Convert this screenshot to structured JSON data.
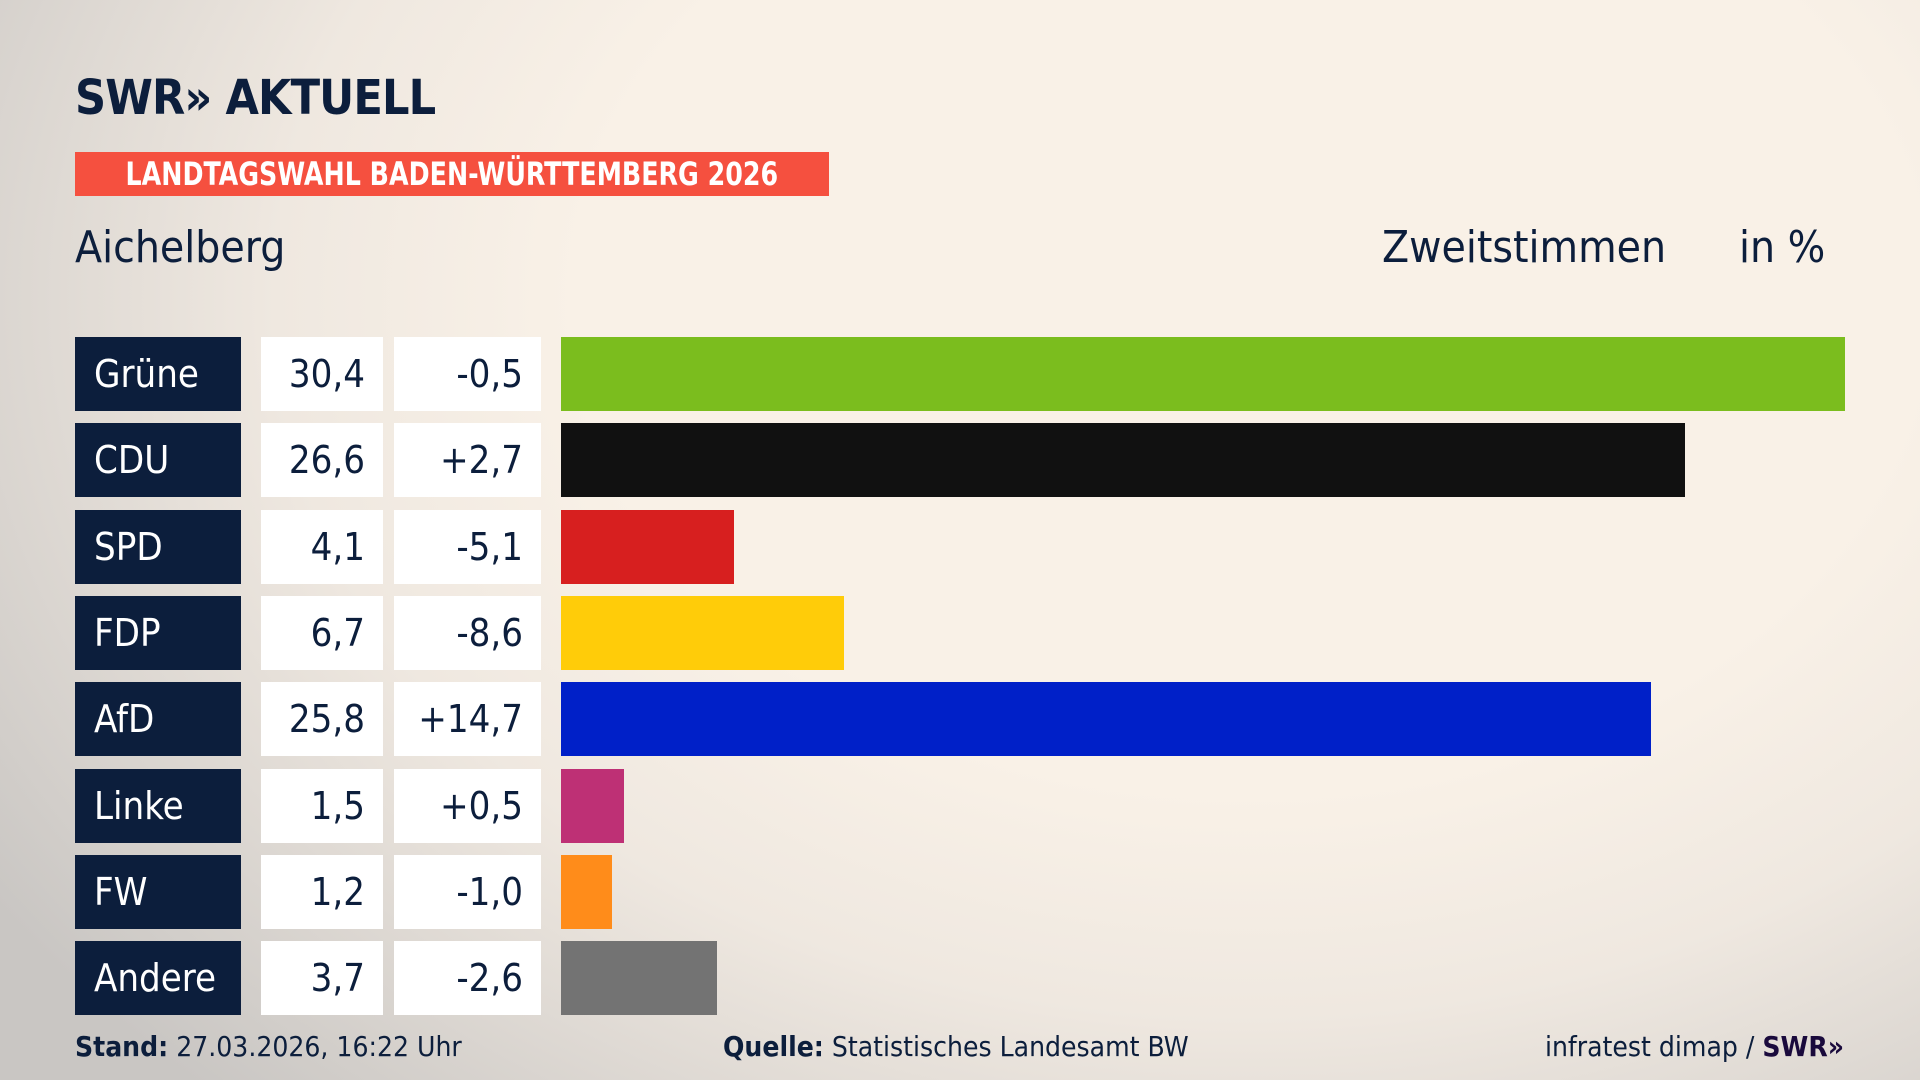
{
  "brand": {
    "logo": "SWR» AKTUELL"
  },
  "banner": "LANDTAGSWAHL BADEN-WÜRTTEMBERG 2026",
  "region": "Aichelberg",
  "measure": "Zweitstimmen",
  "unit": "in %",
  "chart_data": {
    "type": "bar",
    "orientation": "horizontal",
    "categories": [
      "Grüne",
      "CDU",
      "SPD",
      "FDP",
      "AfD",
      "Linke",
      "FW",
      "Andere"
    ],
    "values": [
      30.4,
      26.6,
      4.1,
      6.7,
      25.8,
      1.5,
      1.2,
      3.7
    ],
    "value_labels": [
      "30,4",
      "26,6",
      "4,1",
      "6,7",
      "25,8",
      "1,5",
      "1,2",
      "3,7"
    ],
    "changes": [
      -0.5,
      2.7,
      -5.1,
      -8.6,
      14.7,
      0.5,
      -1.0,
      -2.6
    ],
    "change_labels": [
      "-0,5",
      "+2,7",
      "-5,1",
      "-8,6",
      "+14,7",
      "+0,5",
      "-1,0",
      "-2,6"
    ],
    "colors": [
      "#7bbd1e",
      "#111111",
      "#d71f1f",
      "#ffcc09",
      "#0020c8",
      "#be3075",
      "#ff8c1a",
      "#737373"
    ],
    "xlim": [
      0,
      30.4
    ],
    "grid": false
  },
  "footer": {
    "stand_label": "Stand:",
    "stand_value": "27.03.2026, 16:22 Uhr",
    "source_label": "Quelle:",
    "source_value": "Statistisches Landesamt BW",
    "credit": "infratest dimap /",
    "credit_brand": "SWR»"
  }
}
